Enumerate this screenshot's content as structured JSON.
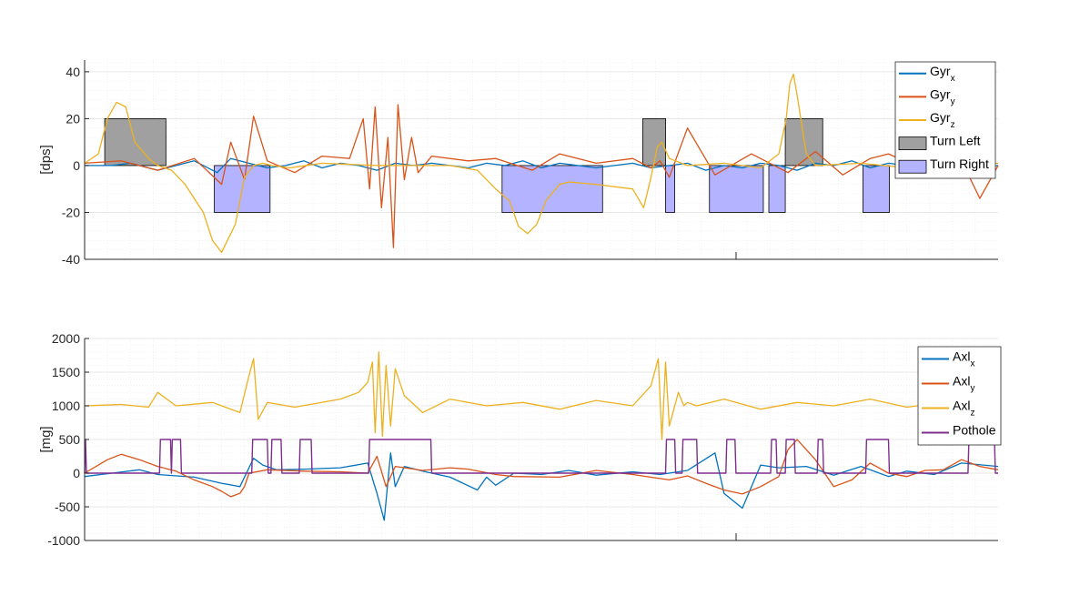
{
  "chart_data": [
    {
      "type": "line",
      "ylabel": "[dps]",
      "ylim": [
        -40,
        45
      ],
      "yticks": [
        -40,
        -20,
        0,
        20,
        40
      ],
      "ytick_labels": [
        "-40",
        "-20",
        "0",
        "20",
        "40"
      ],
      "xlim": [
        0,
        1000
      ],
      "grid": true,
      "legend_position": "top-right",
      "series": [
        {
          "name": "Gyr",
          "sub": "x",
          "color": "#0072BD",
          "x": [
            0,
            30,
            50,
            80,
            120,
            145,
            160,
            180,
            200,
            220,
            240,
            260,
            280,
            300,
            320,
            340,
            360,
            380,
            400,
            420,
            440,
            460,
            480,
            500,
            520,
            540,
            560,
            580,
            600,
            620,
            640,
            660,
            680,
            700,
            720,
            740,
            760,
            780,
            800,
            820,
            840,
            860,
            880,
            900,
            920,
            940,
            960,
            980,
            1000
          ],
          "y": [
            0,
            0,
            1,
            -2,
            2,
            -3,
            3,
            1,
            -1,
            0,
            2,
            -1,
            1,
            0,
            -2,
            1,
            0,
            1,
            0,
            -1,
            1,
            0,
            2,
            -1,
            1,
            0,
            -1,
            0,
            1,
            -1,
            0,
            1,
            -2,
            0,
            -1,
            1,
            0,
            -2,
            1,
            0,
            2,
            -1,
            1,
            0,
            -1,
            1,
            0,
            -1,
            0
          ]
        },
        {
          "name": "Gyr",
          "sub": "y",
          "color": "#D95319",
          "x": [
            0,
            40,
            80,
            120,
            150,
            160,
            175,
            185,
            200,
            230,
            260,
            290,
            305,
            312,
            318,
            325,
            332,
            338,
            343,
            350,
            358,
            365,
            380,
            420,
            450,
            490,
            520,
            560,
            600,
            620,
            630,
            640,
            660,
            690,
            730,
            770,
            800,
            830,
            860,
            880,
            920,
            940,
            960,
            980,
            1000
          ],
          "y": [
            1,
            2,
            -2,
            3,
            -8,
            10,
            -6,
            21,
            2,
            -3,
            4,
            3,
            20,
            -10,
            25,
            -18,
            12,
            -35,
            26,
            -6,
            12,
            -3,
            4,
            2,
            3,
            -2,
            5,
            1,
            3,
            -1,
            2,
            -5,
            16,
            -4,
            5,
            -3,
            6,
            -4,
            3,
            5,
            -2,
            8,
            2,
            -14,
            0
          ]
        },
        {
          "name": "Gyr",
          "sub": "z",
          "color": "#EDB120",
          "x": [
            0,
            15,
            25,
            35,
            45,
            55,
            70,
            80,
            95,
            110,
            130,
            140,
            150,
            165,
            175,
            185,
            195,
            205,
            225,
            260,
            320,
            400,
            430,
            450,
            465,
            475,
            485,
            495,
            505,
            520,
            530,
            560,
            600,
            612,
            620,
            627,
            632,
            640,
            660,
            700,
            740,
            760,
            768,
            772,
            776,
            780,
            790,
            800,
            850,
            900,
            950,
            1000
          ],
          "y": [
            1,
            5,
            20,
            27,
            25,
            10,
            3,
            0,
            -2,
            -8,
            -20,
            -32,
            -37,
            -25,
            -5,
            0,
            1,
            0,
            -1,
            1,
            0,
            0,
            -2,
            -10,
            -15,
            -26,
            -29,
            -25,
            -15,
            -8,
            -7,
            -8,
            -10,
            -18,
            -5,
            8,
            10,
            3,
            0,
            1,
            -1,
            5,
            20,
            35,
            39,
            30,
            5,
            0,
            1,
            -1,
            0,
            1
          ]
        }
      ],
      "shaded": [
        {
          "name": "Turn Left",
          "color": "#A0A0A0",
          "ranges": [
            [
              22,
              89,
              20
            ],
            [
              611,
              636,
              20
            ],
            [
              767,
              808,
              20
            ]
          ]
        },
        {
          "name": "Turn Right",
          "color": "#B3B3FF",
          "ranges": [
            [
              142,
              203,
              -20
            ],
            [
              457,
              567,
              -20
            ],
            [
              636,
              646,
              -20
            ],
            [
              684,
              743,
              -20
            ],
            [
              749,
              767,
              -20
            ],
            [
              852,
              881,
              -20
            ]
          ]
        }
      ],
      "legend": [
        {
          "name": "Gyr",
          "sub": "x"
        },
        {
          "name": "Gyr",
          "sub": "y"
        },
        {
          "name": "Gyr",
          "sub": "z"
        },
        {
          "name": "Turn Left"
        },
        {
          "name": "Turn Right"
        }
      ]
    },
    {
      "type": "line",
      "ylabel": "[mg]",
      "ylim": [
        -1000,
        2000
      ],
      "yticks": [
        -1000,
        -500,
        0,
        500,
        1000,
        1500,
        2000
      ],
      "ytick_labels": [
        "-1000",
        "-500",
        "0",
        "500",
        "1000",
        "1500",
        "2000"
      ],
      "xlim": [
        0,
        1000
      ],
      "grid": true,
      "legend_position": "top-right",
      "series": [
        {
          "name": "Axl",
          "sub": "x",
          "color": "#0072BD",
          "x": [
            0,
            30,
            60,
            80,
            120,
            150,
            170,
            185,
            195,
            210,
            240,
            280,
            310,
            320,
            328,
            335,
            340,
            350,
            370,
            400,
            430,
            440,
            450,
            470,
            500,
            530,
            560,
            600,
            630,
            660,
            690,
            700,
            720,
            740,
            760,
            790,
            820,
            850,
            880,
            900,
            930,
            960,
            1000
          ],
          "y": [
            -50,
            0,
            50,
            -20,
            -60,
            -150,
            -200,
            220,
            120,
            50,
            60,
            80,
            150,
            -300,
            -700,
            300,
            -200,
            100,
            30,
            -60,
            -250,
            -60,
            -180,
            0,
            -20,
            40,
            -30,
            20,
            -20,
            40,
            300,
            -300,
            -520,
            120,
            80,
            100,
            -30,
            100,
            -50,
            30,
            -20,
            150,
            100
          ]
        },
        {
          "name": "Axl",
          "sub": "y",
          "color": "#D95319",
          "x": [
            0,
            25,
            40,
            60,
            80,
            100,
            120,
            140,
            150,
            160,
            170,
            175,
            180,
            200,
            240,
            280,
            310,
            320,
            330,
            340,
            370,
            400,
            420,
            450,
            470,
            520,
            560,
            600,
            640,
            660,
            680,
            700,
            720,
            740,
            760,
            770,
            780,
            800,
            820,
            840,
            860,
            880,
            900,
            920,
            940,
            960,
            980,
            1000
          ],
          "y": [
            0,
            200,
            280,
            200,
            100,
            30,
            -100,
            -200,
            -270,
            -350,
            -300,
            -200,
            0,
            50,
            30,
            20,
            0,
            250,
            -200,
            100,
            40,
            80,
            60,
            -20,
            -50,
            -60,
            40,
            -20,
            -100,
            -40,
            -150,
            -250,
            -310,
            -200,
            -50,
            350,
            500,
            200,
            -200,
            -100,
            150,
            0,
            -50,
            40,
            50,
            200,
            100,
            50
          ]
        },
        {
          "name": "Axl",
          "sub": "z",
          "color": "#EDB120",
          "x": [
            0,
            40,
            70,
            80,
            100,
            140,
            170,
            180,
            185,
            190,
            200,
            230,
            280,
            300,
            310,
            315,
            318,
            322,
            326,
            330,
            335,
            340,
            350,
            370,
            400,
            440,
            480,
            520,
            560,
            600,
            620,
            628,
            632,
            636,
            640,
            650,
            656,
            660,
            670,
            700,
            740,
            780,
            820,
            860,
            900,
            940,
            980,
            1000
          ],
          "y": [
            1000,
            1020,
            980,
            1200,
            1000,
            1050,
            900,
            1450,
            1700,
            800,
            1050,
            980,
            1100,
            1200,
            1350,
            1650,
            600,
            1800,
            550,
            1600,
            700,
            1550,
            1150,
            900,
            1100,
            1000,
            1050,
            950,
            1080,
            1000,
            1300,
            1700,
            500,
            1650,
            700,
            1200,
            1000,
            1050,
            1000,
            1100,
            950,
            1050,
            1000,
            1100,
            980,
            1050,
            1000,
            1020
          ]
        },
        {
          "name": "Pothole",
          "color": "#7E2F8E",
          "step": true,
          "x": [
            0,
            1,
            2,
            82,
            83,
            94,
            95,
            96,
            105,
            106,
            183,
            184,
            200,
            201,
            204,
            205,
            215,
            216,
            235,
            236,
            248,
            249,
            311,
            312,
            379,
            380,
            636,
            637,
            646,
            647,
            654,
            655,
            670,
            671,
            702,
            703,
            712,
            713,
            751,
            752,
            757,
            758,
            767,
            768,
            777,
            778,
            802,
            803,
            808,
            809,
            855,
            856,
            880,
            881,
            967,
            968,
            996,
            997,
            1000
          ],
          "y": [
            0,
            500,
            0,
            0,
            500,
            500,
            0,
            500,
            500,
            0,
            0,
            500,
            500,
            0,
            0,
            500,
            500,
            0,
            0,
            500,
            500,
            0,
            0,
            500,
            500,
            0,
            0,
            500,
            500,
            0,
            0,
            500,
            500,
            0,
            0,
            500,
            500,
            0,
            0,
            500,
            500,
            0,
            0,
            500,
            500,
            0,
            0,
            500,
            500,
            0,
            0,
            500,
            500,
            0,
            0,
            500,
            500,
            0,
            0
          ]
        }
      ],
      "legend": [
        {
          "name": "Axl",
          "sub": "x"
        },
        {
          "name": "Axl",
          "sub": "y"
        },
        {
          "name": "Axl",
          "sub": "z"
        },
        {
          "name": "Pothole"
        }
      ]
    }
  ]
}
